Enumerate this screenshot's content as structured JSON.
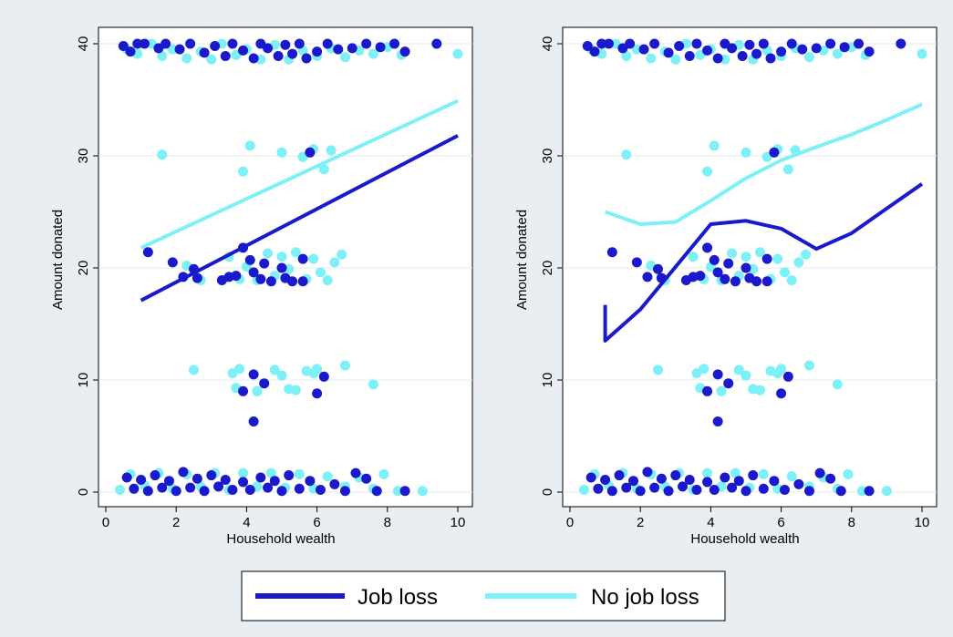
{
  "colors": {
    "job_loss": "#1a1acc",
    "no_job_loss": "#7ef0f7",
    "background": "#e8eef2",
    "plot_bg": "#ffffff",
    "grid": "#e6ebee"
  },
  "legend": {
    "items": [
      {
        "label": "Job loss",
        "color": "#1a1acc"
      },
      {
        "label": "No job loss",
        "color": "#7ef0f7"
      }
    ],
    "placement": "bottom"
  },
  "chart_data": [
    {
      "type": "scatter",
      "title": "",
      "xlabel": "Household wealth",
      "ylabel": "Amount donated",
      "xlim": [
        0,
        10
      ],
      "ylim": [
        0,
        40
      ],
      "xticks": [
        0,
        2,
        4,
        6,
        8,
        10
      ],
      "yticks": [
        0,
        10,
        20,
        30,
        40
      ],
      "grid": true,
      "fit": "linear",
      "series": [
        {
          "name": "Job loss",
          "fit_line": [
            [
              1,
              17.1
            ],
            [
              10,
              31.8
            ]
          ]
        },
        {
          "name": "No job loss",
          "fit_line": [
            [
              1,
              21.8
            ],
            [
              10,
              34.9
            ]
          ]
        }
      ]
    },
    {
      "type": "scatter",
      "title": "",
      "xlabel": "Household wealth",
      "ylabel": "Amount donated",
      "xlim": [
        0,
        10
      ],
      "ylim": [
        0,
        40
      ],
      "xticks": [
        0,
        2,
        4,
        6,
        8,
        10
      ],
      "yticks": [
        0,
        10,
        20,
        30,
        40
      ],
      "grid": true,
      "fit": "local",
      "series": [
        {
          "name": "Job loss",
          "fit_line": [
            [
              1,
              16.7
            ],
            [
              1,
              13.5
            ],
            [
              2,
              16.3
            ],
            [
              3,
              20.1
            ],
            [
              4,
              23.9
            ],
            [
              5,
              24.2
            ],
            [
              6,
              23.5
            ],
            [
              7,
              21.7
            ],
            [
              8,
              23.1
            ],
            [
              9,
              25.3
            ],
            [
              10,
              27.5
            ]
          ]
        },
        {
          "name": "No job loss",
          "fit_line": [
            [
              1,
              25.0
            ],
            [
              2,
              23.9
            ],
            [
              3,
              24.1
            ],
            [
              4,
              26.0
            ],
            [
              5,
              28.0
            ],
            [
              6,
              29.6
            ],
            [
              7,
              30.8
            ],
            [
              8,
              31.9
            ],
            [
              9,
              33.2
            ],
            [
              10,
              34.6
            ]
          ]
        }
      ]
    }
  ],
  "scatter_points": {
    "job_loss": [
      [
        0.5,
        39.8
      ],
      [
        0.7,
        39.3
      ],
      [
        0.9,
        40
      ],
      [
        1.1,
        40
      ],
      [
        1.5,
        39.6
      ],
      [
        1.7,
        40
      ],
      [
        2.1,
        39.5
      ],
      [
        2.4,
        40
      ],
      [
        2.8,
        39.2
      ],
      [
        3.1,
        39.8
      ],
      [
        3.4,
        38.9
      ],
      [
        3.6,
        40
      ],
      [
        3.9,
        39.4
      ],
      [
        4.2,
        38.7
      ],
      [
        4.4,
        40
      ],
      [
        4.6,
        39.6
      ],
      [
        4.9,
        38.9
      ],
      [
        5.1,
        39.9
      ],
      [
        5.3,
        39.1
      ],
      [
        5.5,
        40
      ],
      [
        5.7,
        38.7
      ],
      [
        6.0,
        39.3
      ],
      [
        6.3,
        40
      ],
      [
        6.6,
        39.5
      ],
      [
        7.0,
        39.6
      ],
      [
        7.4,
        40
      ],
      [
        7.8,
        39.7
      ],
      [
        8.2,
        40
      ],
      [
        8.5,
        39.3
      ],
      [
        9.4,
        40
      ],
      [
        5.8,
        30.3
      ],
      [
        1.2,
        21.4
      ],
      [
        1.9,
        20.5
      ],
      [
        2.2,
        19.2
      ],
      [
        2.5,
        19.9
      ],
      [
        2.6,
        19.1
      ],
      [
        3.3,
        18.9
      ],
      [
        3.5,
        19.2
      ],
      [
        3.7,
        19.3
      ],
      [
        3.9,
        21.8
      ],
      [
        4.1,
        20.7
      ],
      [
        4.2,
        19.6
      ],
      [
        4.4,
        19.0
      ],
      [
        4.5,
        20.4
      ],
      [
        4.7,
        18.8
      ],
      [
        5.0,
        20.0
      ],
      [
        5.1,
        19.1
      ],
      [
        5.3,
        18.8
      ],
      [
        5.6,
        20.8
      ],
      [
        5.6,
        18.8
      ],
      [
        3.9,
        9.0
      ],
      [
        4.2,
        10.5
      ],
      [
        4.5,
        9.7
      ],
      [
        6.0,
        8.8
      ],
      [
        6.2,
        10.3
      ],
      [
        4.2,
        6.3
      ],
      [
        0.6,
        1.3
      ],
      [
        0.8,
        0.3
      ],
      [
        1.0,
        1.1
      ],
      [
        1.2,
        0.1
      ],
      [
        1.4,
        1.5
      ],
      [
        1.6,
        0.4
      ],
      [
        1.8,
        1.0
      ],
      [
        2.0,
        0.1
      ],
      [
        2.2,
        1.8
      ],
      [
        2.4,
        0.4
      ],
      [
        2.6,
        1.2
      ],
      [
        2.8,
        0.1
      ],
      [
        3.0,
        1.5
      ],
      [
        3.2,
        0.5
      ],
      [
        3.4,
        1.1
      ],
      [
        3.6,
        0.2
      ],
      [
        3.9,
        0.9
      ],
      [
        4.1,
        0.2
      ],
      [
        4.4,
        1.3
      ],
      [
        4.6,
        0.4
      ],
      [
        4.8,
        1.0
      ],
      [
        5.0,
        0.1
      ],
      [
        5.2,
        1.5
      ],
      [
        5.5,
        0.3
      ],
      [
        5.8,
        1.0
      ],
      [
        6.1,
        0.2
      ],
      [
        6.5,
        0.7
      ],
      [
        6.8,
        0.1
      ],
      [
        7.1,
        1.7
      ],
      [
        7.4,
        1.2
      ],
      [
        7.7,
        0.1
      ],
      [
        8.5,
        0.1
      ]
    ],
    "no_job_loss": [
      [
        0.6,
        39.5
      ],
      [
        0.9,
        39.1
      ],
      [
        1.3,
        40
      ],
      [
        1.6,
        38.9
      ],
      [
        1.9,
        39.5
      ],
      [
        2.3,
        38.7
      ],
      [
        2.7,
        39.3
      ],
      [
        3.0,
        38.6
      ],
      [
        3.3,
        40
      ],
      [
        3.7,
        39.0
      ],
      [
        4.0,
        39.5
      ],
      [
        4.4,
        38.6
      ],
      [
        4.8,
        39.9
      ],
      [
        5.2,
        38.6
      ],
      [
        5.6,
        39.4
      ],
      [
        6.0,
        38.9
      ],
      [
        6.4,
        39.6
      ],
      [
        6.8,
        38.8
      ],
      [
        7.2,
        39.4
      ],
      [
        7.6,
        39.1
      ],
      [
        8.0,
        39.7
      ],
      [
        8.4,
        39.0
      ],
      [
        10.0,
        39.1
      ],
      [
        1.6,
        30.1
      ],
      [
        3.9,
        28.6
      ],
      [
        4.1,
        30.9
      ],
      [
        5.0,
        30.3
      ],
      [
        5.6,
        29.9
      ],
      [
        5.9,
        30.6
      ],
      [
        6.2,
        28.8
      ],
      [
        6.4,
        30.5
      ],
      [
        2.3,
        20.2
      ],
      [
        2.7,
        18.9
      ],
      [
        3.5,
        21.0
      ],
      [
        3.8,
        19.0
      ],
      [
        4.0,
        20.1
      ],
      [
        4.3,
        18.9
      ],
      [
        4.6,
        21.3
      ],
      [
        4.8,
        19.3
      ],
      [
        5.0,
        21.0
      ],
      [
        5.2,
        19.9
      ],
      [
        5.4,
        21.4
      ],
      [
        5.7,
        19.0
      ],
      [
        5.9,
        20.8
      ],
      [
        6.1,
        19.6
      ],
      [
        6.3,
        18.9
      ],
      [
        6.5,
        20.5
      ],
      [
        6.7,
        21.2
      ],
      [
        2.5,
        10.9
      ],
      [
        3.6,
        10.6
      ],
      [
        3.7,
        9.3
      ],
      [
        3.8,
        11.0
      ],
      [
        4.3,
        9.0
      ],
      [
        4.8,
        10.9
      ],
      [
        5.0,
        10.4
      ],
      [
        5.2,
        9.2
      ],
      [
        5.4,
        9.1
      ],
      [
        5.7,
        10.8
      ],
      [
        5.9,
        10.6
      ],
      [
        6.0,
        11.0
      ],
      [
        6.8,
        11.3
      ],
      [
        7.6,
        9.6
      ],
      [
        0.4,
        0.2
      ],
      [
        0.7,
        1.6
      ],
      [
        1.1,
        0.6
      ],
      [
        1.5,
        1.7
      ],
      [
        1.9,
        0.3
      ],
      [
        2.3,
        1.6
      ],
      [
        2.7,
        0.5
      ],
      [
        3.1,
        1.7
      ],
      [
        3.5,
        0.2
      ],
      [
        3.9,
        1.7
      ],
      [
        4.3,
        0.5
      ],
      [
        4.7,
        1.7
      ],
      [
        5.1,
        0.4
      ],
      [
        5.5,
        1.6
      ],
      [
        5.9,
        0.3
      ],
      [
        6.3,
        1.4
      ],
      [
        6.8,
        0.5
      ],
      [
        7.2,
        1.3
      ],
      [
        7.6,
        0.3
      ],
      [
        7.9,
        1.6
      ],
      [
        8.3,
        0.1
      ],
      [
        9.0,
        0.1
      ]
    ]
  }
}
